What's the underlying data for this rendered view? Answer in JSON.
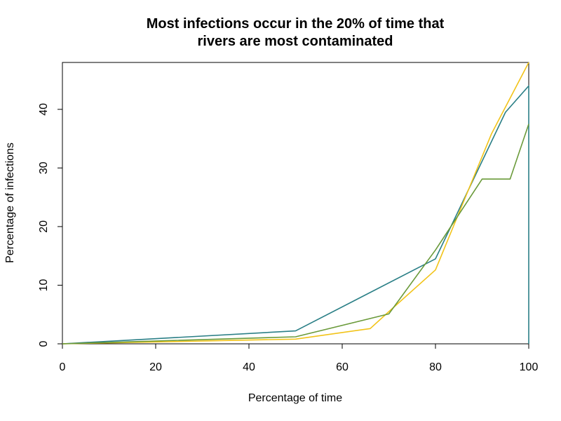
{
  "chart_data": {
    "type": "line",
    "title_lines": [
      "Most infections occur in the 20% of time that",
      "rivers are most contaminated"
    ],
    "xlabel": "Percentage of time",
    "ylabel": "Percentage of infections",
    "xlim": [
      0,
      100
    ],
    "ylim": [
      0,
      48
    ],
    "xticks": [
      0,
      20,
      40,
      60,
      80,
      100
    ],
    "yticks": [
      0,
      10,
      20,
      30,
      40
    ],
    "grid": false,
    "series": [
      {
        "color": "#2a7f86",
        "points": [
          [
            0,
            0
          ],
          [
            50,
            2.2
          ],
          [
            80,
            14.5
          ],
          [
            95,
            39.5
          ],
          [
            100,
            44
          ],
          [
            100,
            0
          ]
        ]
      },
      {
        "color": "#f2c318",
        "points": [
          [
            0,
            0
          ],
          [
            50,
            0.8
          ],
          [
            66,
            2.6
          ],
          [
            70,
            5.5
          ],
          [
            80,
            12.6
          ],
          [
            92,
            35.8
          ],
          [
            100,
            48
          ]
        ]
      },
      {
        "color": "#6a9a3a",
        "points": [
          [
            0,
            0
          ],
          [
            50,
            1.2
          ],
          [
            70,
            5.1
          ],
          [
            80,
            16
          ],
          [
            90,
            28.1
          ],
          [
            96,
            28.1
          ],
          [
            100,
            37.5
          ]
        ]
      }
    ]
  }
}
